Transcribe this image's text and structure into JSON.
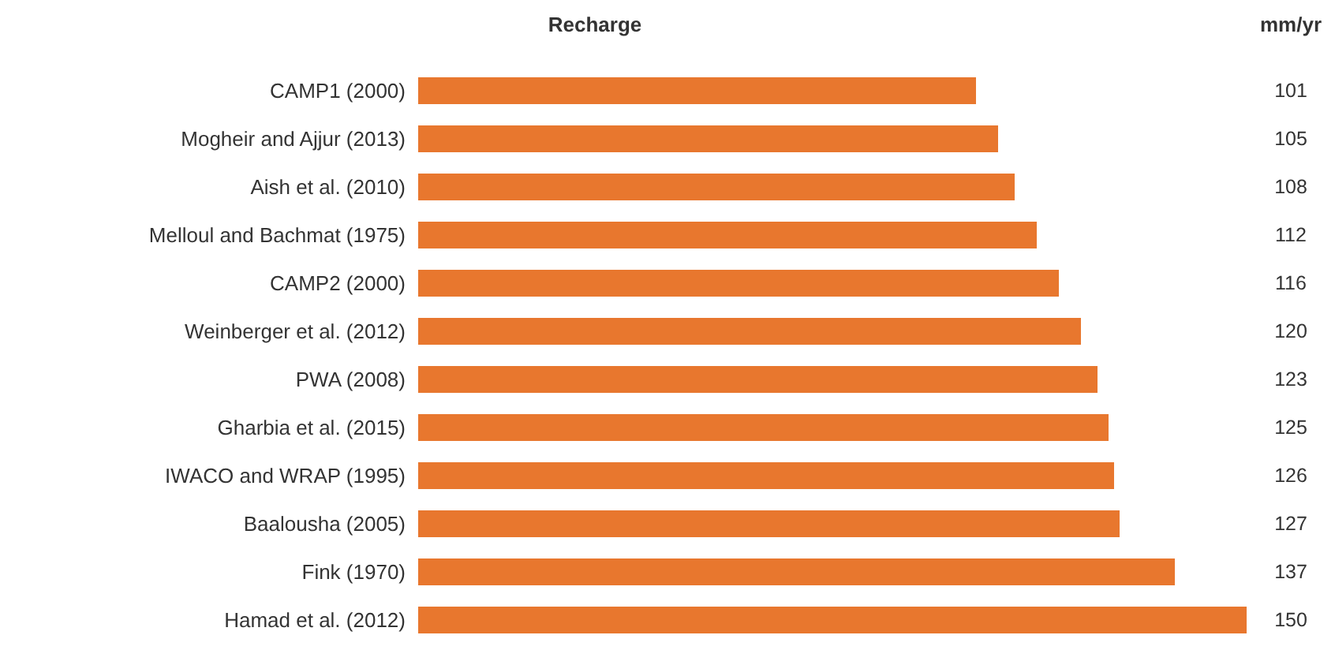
{
  "chart_data": {
    "type": "bar",
    "orientation": "horizontal",
    "title": "Recharge",
    "annotations": [
      "mm/yr"
    ],
    "categories": [
      "CAMP1 (2000)",
      "Mogheir and Ajjur (2013)",
      "Aish et al. (2010)",
      "Melloul and Bachmat (1975)",
      "CAMP2 (2000)",
      "Weinberger et al. (2012)",
      "PWA (2008)",
      "Gharbia et al. (2015)",
      "IWACO and WRAP (1995)",
      "Baalousha (2005)",
      "Fink (1970)",
      "Hamad et al. (2012)"
    ],
    "values": [
      101,
      105,
      108,
      112,
      116,
      120,
      123,
      125,
      126,
      127,
      137,
      150
    ],
    "color": "#e8772e",
    "xlim": [
      0,
      150
    ],
    "data_labels": true
  }
}
